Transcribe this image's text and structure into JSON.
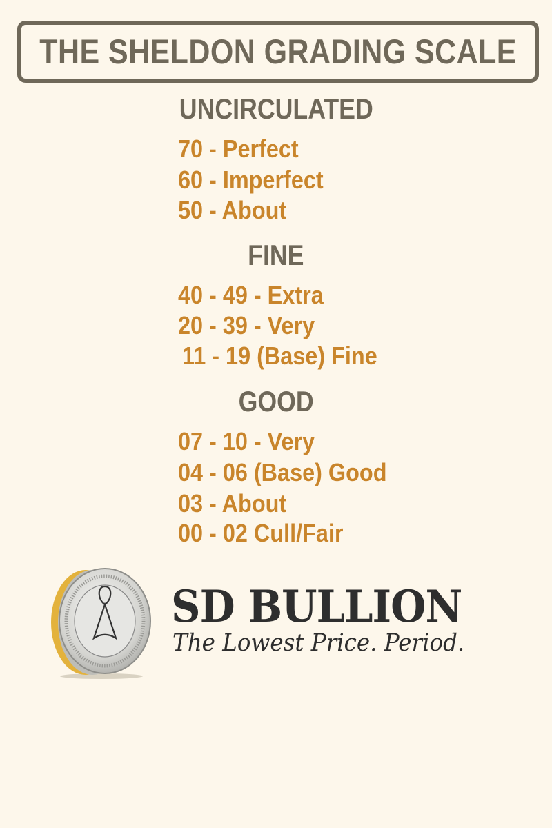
{
  "title": "THE SHELDON GRADING SCALE",
  "sections": [
    {
      "heading": "UNCIRCULATED",
      "items": [
        "70 - Perfect",
        "60 - Imperfect",
        "50 - About"
      ]
    },
    {
      "heading": "FINE",
      "items": [
        "40 - 49 - Extra",
        "20 - 39 - Very",
        "11 - 19 (Base) Fine"
      ]
    },
    {
      "heading": "GOOD",
      "items": [
        "07 - 10 - Very",
        "04 - 06 (Base) Good",
        "03 - About",
        "00 - 02 Cull/Fair"
      ]
    }
  ],
  "brand": {
    "name": "SD BULLION",
    "tagline": "The Lowest Price. Period.",
    "logo_icon": "coin-icon"
  },
  "colors": {
    "background": "#fdf7eb",
    "heading": "#6f6859",
    "grade": "#c9852b",
    "brand": "#2e2e2e"
  }
}
